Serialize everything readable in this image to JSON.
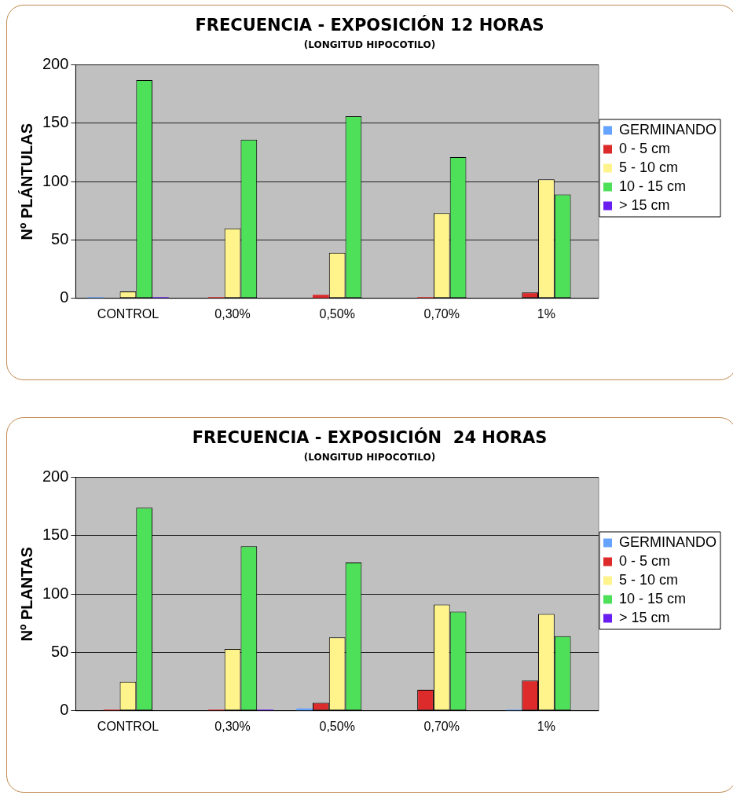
{
  "chart_data": [
    {
      "type": "bar",
      "title": "FRECUENCIA - EXPOSICIÓN 12 HORAS",
      "subtitle": "(LONGITUD HIPOCOTILO)",
      "ylabel": "Nº PLÁNTULAS",
      "categories": [
        "CONTROL",
        "0,30%",
        "0,50%",
        "0,70%",
        "1%"
      ],
      "ylim": [
        0,
        200
      ],
      "yticks": [
        0,
        50,
        100,
        150,
        200
      ],
      "grid": "y",
      "legend": "right",
      "series": [
        {
          "name": "GERMINANDO",
          "color": "#66a3ff",
          "values": [
            1,
            0,
            0,
            0,
            0
          ]
        },
        {
          "name": "0 - 5 cm",
          "color": "#dd2b2b",
          "values": [
            0,
            1,
            3,
            1,
            5
          ]
        },
        {
          "name": "5 - 10 cm",
          "color": "#fff38c",
          "values": [
            6,
            60,
            39,
            73,
            102
          ]
        },
        {
          "name": "10 - 15 cm",
          "color": "#4fe05a",
          "values": [
            187,
            136,
            156,
            121,
            89
          ]
        },
        {
          "name": "> 15 cm",
          "color": "#6a1ff0",
          "values": [
            1,
            0,
            0,
            0,
            0
          ]
        }
      ]
    },
    {
      "type": "bar",
      "title": "FRECUENCIA - EXPOSICIÓN  24 HORAS",
      "subtitle": "(LONGITUD HIPOCOTILO)",
      "ylabel": "Nº PLANTAS",
      "categories": [
        "CONTROL",
        "0,30%",
        "0,50%",
        "0,70%",
        "1%"
      ],
      "ylim": [
        0,
        200
      ],
      "yticks": [
        0,
        50,
        100,
        150,
        200
      ],
      "grid": "y",
      "legend": "right",
      "series": [
        {
          "name": "GERMINANDO",
          "color": "#66a3ff",
          "values": [
            0,
            0,
            2,
            0,
            1
          ]
        },
        {
          "name": "0 - 5 cm",
          "color": "#dd2b2b",
          "values": [
            1,
            1,
            7,
            18,
            26
          ]
        },
        {
          "name": "5 - 10 cm",
          "color": "#fff38c",
          "values": [
            25,
            53,
            63,
            91,
            83
          ]
        },
        {
          "name": "10 - 15 cm",
          "color": "#4fe05a",
          "values": [
            174,
            141,
            127,
            85,
            64
          ]
        },
        {
          "name": "> 15 cm",
          "color": "#6a1ff0",
          "values": [
            0,
            1,
            0,
            0,
            0
          ]
        }
      ]
    }
  ]
}
